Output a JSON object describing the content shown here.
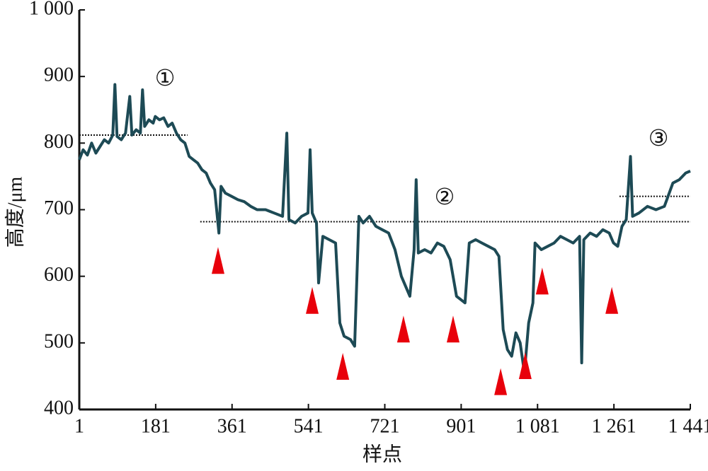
{
  "chart_data": {
    "type": "line",
    "x_label": "样点",
    "y_label": "高度/μm",
    "xlim": [
      1,
      1441
    ],
    "ylim": [
      400,
      1000
    ],
    "xticks": [
      1,
      181,
      361,
      541,
      721,
      901,
      {
        "value": 1081,
        "label": "1 081"
      },
      {
        "value": 1261,
        "label": "1 261"
      },
      {
        "value": 1441,
        "label": "1 441"
      }
    ],
    "yticks": [
      400,
      500,
      600,
      700,
      800,
      900,
      {
        "value": 1000,
        "label": "1 000"
      }
    ],
    "x": [
      1,
      10,
      20,
      30,
      40,
      50,
      60,
      70,
      80,
      85,
      90,
      100,
      110,
      120,
      125,
      135,
      145,
      150,
      155,
      165,
      175,
      180,
      190,
      200,
      210,
      220,
      230,
      240,
      250,
      260,
      270,
      280,
      290,
      300,
      310,
      320,
      330,
      335,
      345,
      360,
      375,
      390,
      405,
      420,
      440,
      460,
      480,
      490,
      495,
      510,
      525,
      540,
      545,
      550,
      560,
      565,
      575,
      590,
      605,
      615,
      625,
      640,
      650,
      660,
      670,
      685,
      700,
      715,
      730,
      745,
      760,
      770,
      780,
      790,
      795,
      800,
      815,
      830,
      845,
      860,
      875,
      890,
      900,
      910,
      920,
      935,
      950,
      965,
      980,
      990,
      1000,
      1010,
      1020,
      1030,
      1040,
      1050,
      1060,
      1070,
      1075,
      1090,
      1105,
      1120,
      1135,
      1150,
      1165,
      1180,
      1185,
      1190,
      1205,
      1220,
      1235,
      1250,
      1260,
      1270,
      1280,
      1290,
      1300,
      1305,
      1320,
      1340,
      1360,
      1380,
      1400,
      1415,
      1430,
      1441
    ],
    "series": [
      {
        "color": "#1d4a55",
        "values": [
          775,
          790,
          782,
          800,
          785,
          795,
          805,
          800,
          812,
          888,
          810,
          805,
          815,
          870,
          812,
          820,
          815,
          880,
          825,
          835,
          830,
          840,
          835,
          838,
          825,
          830,
          815,
          805,
          800,
          780,
          775,
          770,
          760,
          755,
          740,
          730,
          665,
          735,
          725,
          720,
          715,
          712,
          705,
          700,
          700,
          695,
          690,
          815,
          685,
          680,
          690,
          695,
          790,
          695,
          680,
          590,
          660,
          655,
          650,
          530,
          510,
          505,
          495,
          690,
          680,
          690,
          675,
          670,
          665,
          640,
          600,
          585,
          570,
          640,
          745,
          635,
          640,
          635,
          650,
          645,
          625,
          570,
          565,
          560,
          650,
          655,
          650,
          645,
          640,
          630,
          520,
          490,
          480,
          515,
          500,
          455,
          530,
          560,
          650,
          640,
          645,
          650,
          660,
          655,
          650,
          660,
          470,
          655,
          665,
          660,
          670,
          665,
          650,
          645,
          675,
          685,
          780,
          690,
          695,
          705,
          700,
          705,
          740,
          745,
          755,
          758
        ]
      }
    ],
    "reference_lines": [
      {
        "x": [
          1,
          256
        ],
        "y": 812
      },
      {
        "x": [
          286,
          1441
        ],
        "y": 682
      },
      {
        "x": [
          1274,
          1441
        ],
        "y": 720
      }
    ],
    "markers": [
      {
        "x": 328,
        "y": 644
      },
      {
        "x": 550,
        "y": 584
      },
      {
        "x": 622,
        "y": 485
      },
      {
        "x": 765,
        "y": 541
      },
      {
        "x": 882,
        "y": 541
      },
      {
        "x": 994,
        "y": 462
      },
      {
        "x": 1052,
        "y": 486
      },
      {
        "x": 1092,
        "y": 613
      },
      {
        "x": 1256,
        "y": 584
      }
    ],
    "marker_color": "#e8000b",
    "annotations": [
      {
        "text": "①",
        "x": 203,
        "y": 894
      },
      {
        "text": "②",
        "x": 862,
        "y": 716
      },
      {
        "text": "③",
        "x": 1366,
        "y": 804
      }
    ]
  }
}
